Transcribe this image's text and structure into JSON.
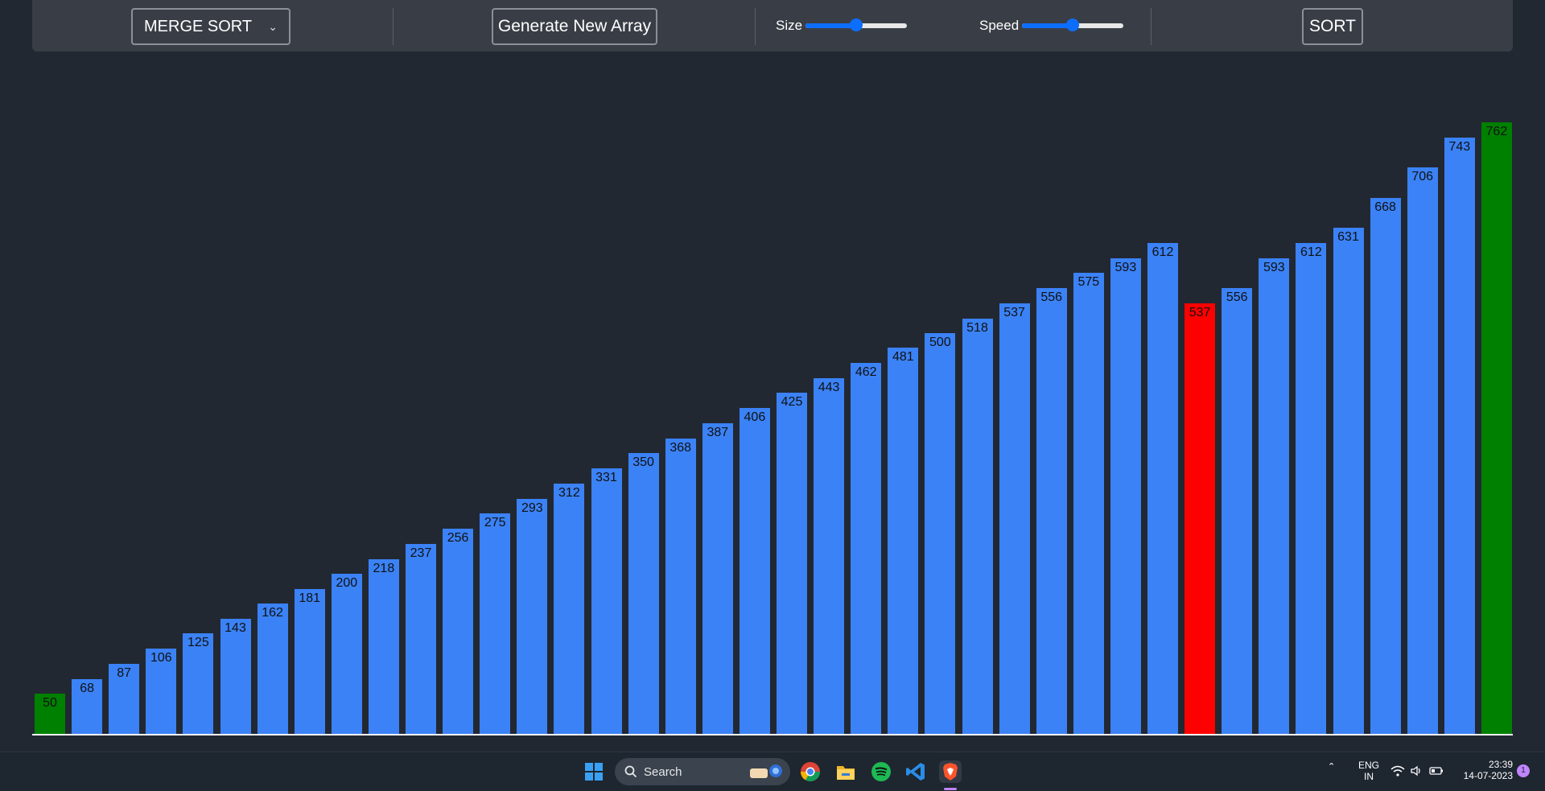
{
  "toolbar": {
    "algorithm_selected": "MERGE SORT",
    "generate_label": "Generate New Array",
    "size_label": "Size",
    "speed_label": "Speed",
    "size_value": 0.5,
    "speed_value": 0.5,
    "sort_label": "SORT"
  },
  "chart_data": {
    "type": "bar",
    "values": [
      50,
      68,
      87,
      106,
      125,
      143,
      162,
      181,
      200,
      218,
      237,
      256,
      275,
      293,
      312,
      331,
      350,
      368,
      387,
      406,
      425,
      443,
      462,
      481,
      500,
      518,
      537,
      556,
      575,
      593,
      612,
      537,
      556,
      593,
      612,
      631,
      668,
      706,
      743,
      762
    ],
    "bar_colors": [
      "#008000",
      "#3b82f6",
      "#3b82f6",
      "#3b82f6",
      "#3b82f6",
      "#3b82f6",
      "#3b82f6",
      "#3b82f6",
      "#3b82f6",
      "#3b82f6",
      "#3b82f6",
      "#3b82f6",
      "#3b82f6",
      "#3b82f6",
      "#3b82f6",
      "#3b82f6",
      "#3b82f6",
      "#3b82f6",
      "#3b82f6",
      "#3b82f6",
      "#3b82f6",
      "#3b82f6",
      "#3b82f6",
      "#3b82f6",
      "#3b82f6",
      "#3b82f6",
      "#3b82f6",
      "#3b82f6",
      "#3b82f6",
      "#3b82f6",
      "#3b82f6",
      "#ff0000",
      "#3b82f6",
      "#3b82f6",
      "#3b82f6",
      "#3b82f6",
      "#3b82f6",
      "#3b82f6",
      "#3b82f6",
      "#008000"
    ],
    "grid": false
  },
  "colors": {
    "default_bar": "#3b82f6",
    "sorted_bar": "#008000",
    "compare_bar": "#ff0000",
    "background": "#222831",
    "toolbar": "#393e46",
    "accent": "#0d6efd"
  },
  "taskbar": {
    "search_label": "Search",
    "icons": [
      "windows-start-icon",
      "search-icon",
      "chrome-icon",
      "file-explorer-icon",
      "spotify-icon",
      "vscode-icon",
      "brave-icon"
    ],
    "language_line1": "ENG",
    "language_line2": "IN",
    "time": "23:39",
    "date": "14-07-2023",
    "notification_count": "1"
  }
}
